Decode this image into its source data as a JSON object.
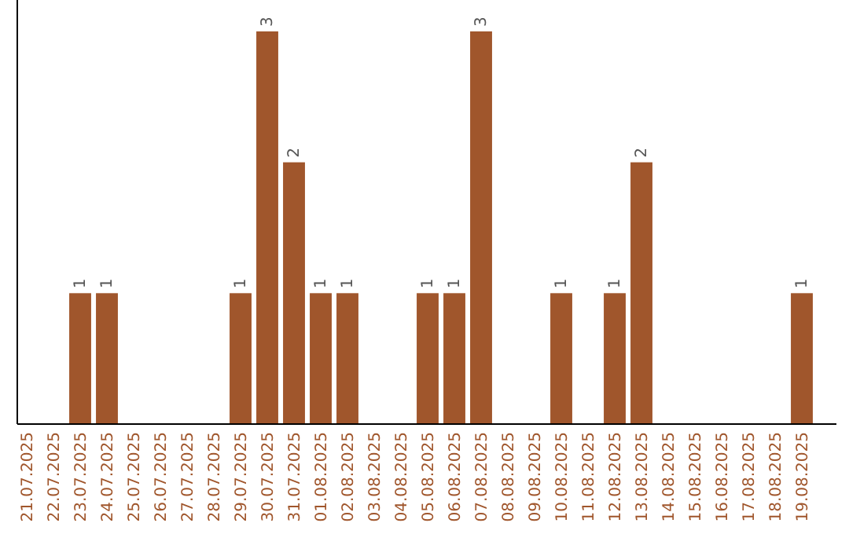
{
  "chart_data": {
    "type": "bar",
    "categories": [
      "21.07.2025",
      "22.07.2025",
      "23.07.2025",
      "24.07.2025",
      "25.07.2025",
      "26.07.2025",
      "27.07.2025",
      "28.07.2025",
      "29.07.2025",
      "30.07.2025",
      "31.07.2025",
      "01.08.2025",
      "02.08.2025",
      "03.08.2025",
      "04.08.2025",
      "05.08.2025",
      "06.08.2025",
      "07.08.2025",
      "08.08.2025",
      "09.08.2025",
      "10.08.2025",
      "11.08.2025",
      "12.08.2025",
      "13.08.2025",
      "14.08.2025",
      "15.08.2025",
      "16.08.2025",
      "17.08.2025",
      "18.08.2025",
      "19.08.2025"
    ],
    "values": [
      0,
      0,
      1,
      1,
      0,
      0,
      0,
      0,
      1,
      3,
      2,
      1,
      1,
      0,
      0,
      1,
      1,
      3,
      0,
      0,
      1,
      0,
      1,
      2,
      0,
      0,
      0,
      0,
      0,
      1
    ],
    "value_labels": [
      null,
      null,
      "1",
      "1",
      null,
      null,
      null,
      null,
      "1",
      "3",
      "2",
      "1",
      "1",
      null,
      null,
      "1",
      "1",
      "3",
      null,
      null,
      "1",
      null,
      "1",
      "2",
      null,
      null,
      null,
      null,
      null,
      "1"
    ],
    "color": "#a0562c",
    "ylim": [
      0,
      3
    ],
    "tick_labels": "x"
  }
}
